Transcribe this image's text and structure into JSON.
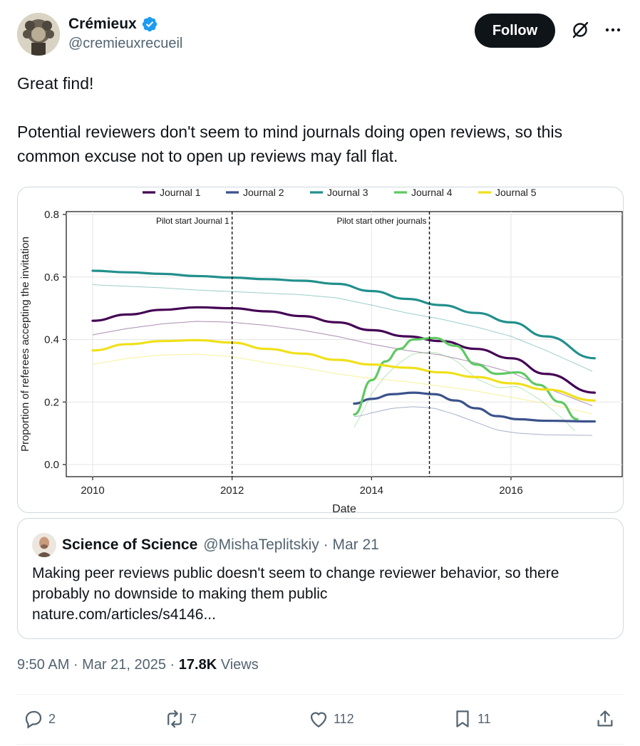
{
  "author": {
    "display_name": "Crémieux",
    "handle": "@cremieuxrecueil",
    "follow_label": "Follow"
  },
  "tweet": {
    "line1": "Great find!",
    "line2": "Potential reviewers don't seem to mind journals doing open reviews, so this common excuse not to open up reviews may fall flat."
  },
  "chart_data": {
    "type": "line",
    "title": "",
    "xlabel": "Date",
    "ylabel": "Proportion of referees accepting the invitation",
    "xlim": [
      2010,
      2017.4
    ],
    "ylim": [
      0.0,
      0.8
    ],
    "x_ticks": [
      "2010",
      "2012",
      "2014",
      "2016"
    ],
    "y_ticks": [
      "0.0",
      "0.2",
      "0.4",
      "0.6",
      "0.8"
    ],
    "legend_position": "top",
    "annotations": [
      {
        "text": "Pilot start Journal 1",
        "x": 2012.0
      },
      {
        "text": "Pilot start other journals",
        "x": 2014.83
      }
    ],
    "series": [
      {
        "name": "Journal 1",
        "color": "#440154",
        "x": [
          2010,
          2010.5,
          2011,
          2011.5,
          2012,
          2012.5,
          2013,
          2013.5,
          2014,
          2014.5,
          2015,
          2015.5,
          2016,
          2016.5,
          2017.2
        ],
        "y": [
          0.46,
          0.48,
          0.495,
          0.503,
          0.5,
          0.49,
          0.475,
          0.455,
          0.43,
          0.41,
          0.395,
          0.37,
          0.34,
          0.29,
          0.23
        ]
      },
      {
        "name": "Journal 2",
        "color": "#3b528b",
        "x": [
          2013.75,
          2014.0,
          2014.3,
          2014.6,
          2014.9,
          2015.2,
          2015.5,
          2015.8,
          2016.1,
          2016.5,
          2017.2
        ],
        "y": [
          0.195,
          0.21,
          0.225,
          0.23,
          0.225,
          0.205,
          0.18,
          0.155,
          0.145,
          0.14,
          0.138
        ]
      },
      {
        "name": "Journal 3",
        "color": "#21908c",
        "x": [
          2010,
          2010.5,
          2011,
          2011.5,
          2012,
          2012.5,
          2013,
          2013.5,
          2014,
          2014.5,
          2015,
          2015.5,
          2016,
          2016.5,
          2017.2
        ],
        "y": [
          0.62,
          0.615,
          0.61,
          0.603,
          0.598,
          0.593,
          0.588,
          0.578,
          0.555,
          0.53,
          0.51,
          0.485,
          0.455,
          0.41,
          0.34
        ]
      },
      {
        "name": "Journal 4",
        "color": "#5ec962",
        "x": [
          2013.75,
          2014.0,
          2014.2,
          2014.4,
          2014.6,
          2014.9,
          2015.2,
          2015.5,
          2015.8,
          2016.1,
          2016.4,
          2016.7,
          2016.95
        ],
        "y": [
          0.16,
          0.27,
          0.33,
          0.37,
          0.4,
          0.405,
          0.38,
          0.32,
          0.29,
          0.295,
          0.255,
          0.2,
          0.145
        ]
      },
      {
        "name": "Journal 5",
        "color": "#f0e01b",
        "x": [
          2010,
          2010.5,
          2011,
          2011.5,
          2012,
          2012.5,
          2013,
          2013.5,
          2014,
          2014.5,
          2015,
          2015.5,
          2016,
          2016.5,
          2017.2
        ],
        "y": [
          0.365,
          0.385,
          0.395,
          0.398,
          0.39,
          0.37,
          0.355,
          0.335,
          0.32,
          0.31,
          0.295,
          0.28,
          0.26,
          0.24,
          0.205
        ]
      }
    ]
  },
  "quote": {
    "name": "Science of Science",
    "handle_date": "@MishaTeplitskiy · Mar 21",
    "text_line1": "Making peer reviews public doesn't seem to change reviewer behavior, so there",
    "text_line2": "probably no downside to making them public",
    "text_line3": "nature.com/articles/s4146..."
  },
  "meta": {
    "time_date": "9:50 AM · Mar 21, 2025 · ",
    "views_count": "17.8K",
    "views_label": " Views"
  },
  "actions": {
    "replies": "2",
    "reposts": "7",
    "likes": "112",
    "bookmarks": "11"
  }
}
